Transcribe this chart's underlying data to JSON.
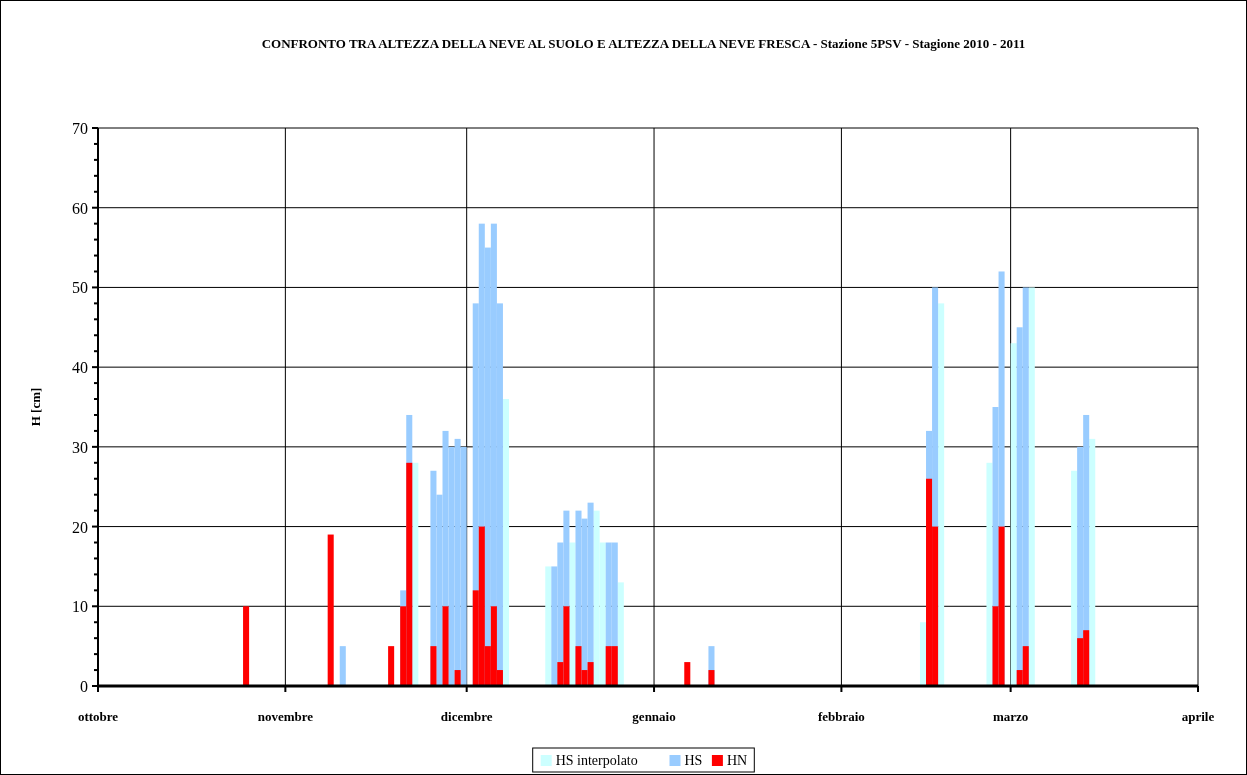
{
  "chart_data": {
    "type": "bar",
    "title": "CONFRONTO TRA ALTEZZA DELLA NEVE AL SUOLO E ALTEZZA DELLA NEVE FRESCA - Stazione 5PSV - Stagione  2010 - 2011",
    "ylabel": "H [cm]",
    "xlim": [
      "2010-10-01",
      "2011-04-01"
    ],
    "xticks": [
      {
        "value": "2010-10-01",
        "label": "ottobre"
      },
      {
        "value": "2010-11-01",
        "label": "novembre"
      },
      {
        "value": "2010-12-01",
        "label": "dicembre"
      },
      {
        "value": "2011-01-01",
        "label": "gennaio"
      },
      {
        "value": "2011-02-01",
        "label": "febbraio"
      },
      {
        "value": "2011-03-01",
        "label": "marzo"
      },
      {
        "value": "2011-04-01",
        "label": "aprile"
      }
    ],
    "ylim": [
      0,
      70
    ],
    "yticks": [
      0,
      {
        "value": 2,
        "label": null
      },
      {
        "value": 4,
        "label": null
      },
      {
        "value": 6,
        "label": null
      },
      {
        "value": 8,
        "label": null
      },
      10,
      {
        "value": 12,
        "label": null
      },
      {
        "value": 14,
        "label": null
      },
      {
        "value": 16,
        "label": null
      },
      {
        "value": 18,
        "label": null
      },
      20,
      {
        "value": 22,
        "label": null
      },
      {
        "value": 24,
        "label": null
      },
      {
        "value": 26,
        "label": null
      },
      {
        "value": 28,
        "label": null
      },
      30,
      {
        "value": 32,
        "label": null
      },
      {
        "value": 34,
        "label": null
      },
      {
        "value": 36,
        "label": null
      },
      {
        "value": 38,
        "label": null
      },
      40,
      {
        "value": 42,
        "label": null
      },
      {
        "value": 44,
        "label": null
      },
      {
        "value": 46,
        "label": null
      },
      {
        "value": 48,
        "label": null
      },
      50,
      {
        "value": 52,
        "label": null
      },
      {
        "value": 54,
        "label": null
      },
      {
        "value": 56,
        "label": null
      },
      {
        "value": 58,
        "label": null
      },
      60,
      {
        "value": 62,
        "label": null
      },
      {
        "value": 64,
        "label": null
      },
      {
        "value": 66,
        "label": null
      },
      {
        "value": 68,
        "label": null
      },
      70
    ],
    "grid": true,
    "legend": "bottom",
    "series": [
      {
        "name": "HS interpolato",
        "color": "#ccffff",
        "x": [
          "2010-11-22",
          "2010-12-07",
          "2010-12-14",
          "2010-12-18",
          "2010-12-22",
          "2010-12-23",
          "2010-12-26",
          "2011-02-14",
          "2011-02-17",
          "2011-02-25",
          "2011-03-01",
          "2011-03-04",
          "2011-03-11",
          "2011-03-14"
        ],
        "values": [
          28,
          36,
          15,
          18,
          22,
          18,
          13,
          8,
          48,
          28,
          43,
          50,
          27,
          31
        ]
      },
      {
        "name": "HS",
        "color": "#99ccff",
        "x": [
          "2010-11-10",
          "2010-11-20",
          "2010-11-21",
          "2010-11-25",
          "2010-11-26",
          "2010-11-27",
          "2010-11-28",
          "2010-11-29",
          "2010-11-30",
          "2010-12-02",
          "2010-12-03",
          "2010-12-04",
          "2010-12-05",
          "2010-12-06",
          "2010-12-15",
          "2010-12-16",
          "2010-12-17",
          "2010-12-19",
          "2010-12-20",
          "2010-12-21",
          "2010-12-24",
          "2010-12-25",
          "2011-01-10",
          "2011-02-15",
          "2011-02-16",
          "2011-02-26",
          "2011-02-27",
          "2011-03-02",
          "2011-03-03",
          "2011-03-12",
          "2011-03-13"
        ],
        "values": [
          5,
          12,
          34,
          27,
          24,
          32,
          30,
          31,
          30,
          48,
          58,
          55,
          58,
          48,
          15,
          18,
          22,
          22,
          21,
          23,
          18,
          18,
          5,
          32,
          50,
          35,
          52,
          45,
          50,
          30,
          34
        ]
      },
      {
        "name": "HN",
        "color": "#ff0000",
        "x": [
          "2010-10-25",
          "2010-11-08",
          "2010-11-18",
          "2010-11-20",
          "2010-11-21",
          "2010-11-25",
          "2010-11-27",
          "2010-11-29",
          "2010-12-02",
          "2010-12-03",
          "2010-12-04",
          "2010-12-05",
          "2010-12-06",
          "2010-12-16",
          "2010-12-17",
          "2010-12-19",
          "2010-12-20",
          "2010-12-21",
          "2010-12-24",
          "2010-12-25",
          "2011-01-06",
          "2011-01-10",
          "2011-02-15",
          "2011-02-16",
          "2011-02-26",
          "2011-02-27",
          "2011-03-02",
          "2011-03-03",
          "2011-03-12",
          "2011-03-13"
        ],
        "values": [
          10,
          19,
          5,
          10,
          28,
          5,
          10,
          2,
          12,
          20,
          5,
          10,
          2,
          3,
          10,
          5,
          2,
          3,
          5,
          5,
          3,
          2,
          26,
          20,
          10,
          20,
          2,
          5,
          6,
          7
        ]
      }
    ]
  }
}
